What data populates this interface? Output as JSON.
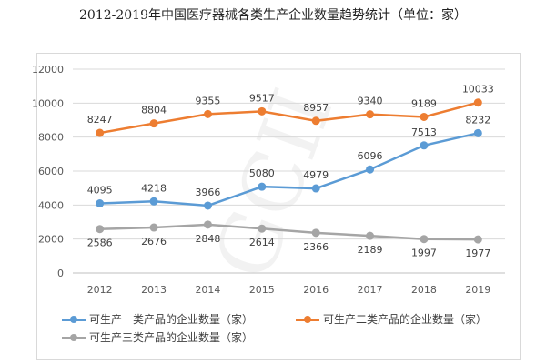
{
  "title": "2012-2019年中国医疗器械各类生产企业数量趋势统计（单位：家）",
  "watermark": "GCII",
  "chart_data": {
    "type": "line",
    "categories": [
      "2012",
      "2013",
      "2014",
      "2015",
      "2016",
      "2017",
      "2018",
      "2019"
    ],
    "ylim": [
      0,
      12000
    ],
    "yticks": [
      "0",
      "2000",
      "4000",
      "6000",
      "8000",
      "10000",
      "12000"
    ],
    "grid": true,
    "legend_position": "bottom",
    "series": [
      {
        "name": "可生产一类产品的企业数量（家）",
        "color": "#5B9BD5",
        "values": [
          4095,
          4218,
          3966,
          5080,
          4979,
          6096,
          7513,
          8232
        ]
      },
      {
        "name": "可生产二类产品的企业数量（家）",
        "color": "#ED7D31",
        "values": [
          8247,
          8804,
          9355,
          9517,
          8957,
          9340,
          9189,
          10033
        ]
      },
      {
        "name": "可生产三类产品的企业数量（家）",
        "color": "#A5A5A5",
        "values": [
          2586,
          2676,
          2848,
          2614,
          2366,
          2189,
          1997,
          1977
        ]
      }
    ]
  }
}
